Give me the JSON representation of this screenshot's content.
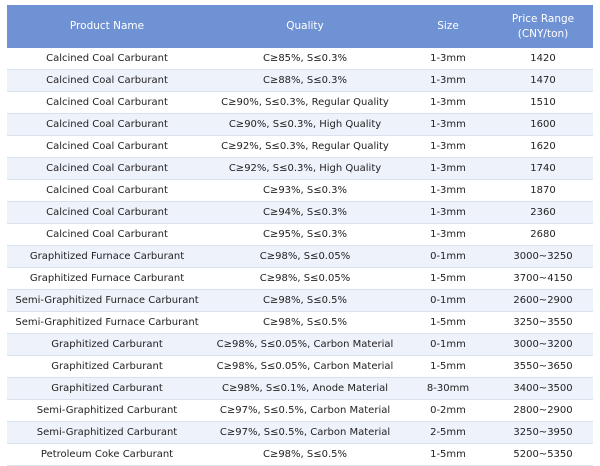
{
  "table": {
    "headers": {
      "product": "Product Name",
      "quality": "Quality",
      "size": "Size",
      "price_line1": "Price Range",
      "price_line2": "(CNY/ton)"
    },
    "rows": [
      {
        "product": "Calcined Coal Carburant",
        "quality": "C≥85%, S≤0.3%",
        "size": "1-3mm",
        "price": "1420"
      },
      {
        "product": "Calcined Coal Carburant",
        "quality": "C≥88%, S≤0.3%",
        "size": "1-3mm",
        "price": "1470"
      },
      {
        "product": "Calcined Coal Carburant",
        "quality": "C≥90%, S≤0.3%, Regular Quality",
        "size": "1-3mm",
        "price": "1510"
      },
      {
        "product": "Calcined Coal Carburant",
        "quality": "C≥90%, S≤0.3%, High Quality",
        "size": "1-3mm",
        "price": "1600"
      },
      {
        "product": "Calcined Coal Carburant",
        "quality": "C≥92%, S≤0.3%, Regular Quality",
        "size": "1-3mm",
        "price": "1620"
      },
      {
        "product": "Calcined Coal Carburant",
        "quality": "C≥92%, S≤0.3%, High Quality",
        "size": "1-3mm",
        "price": "1740"
      },
      {
        "product": "Calcined Coal Carburant",
        "quality": "C≥93%, S≤0.3%",
        "size": "1-3mm",
        "price": "1870"
      },
      {
        "product": "Calcined Coal Carburant",
        "quality": "C≥94%, S≤0.3%",
        "size": "1-3mm",
        "price": "2360"
      },
      {
        "product": "Calcined Coal Carburant",
        "quality": "C≥95%, S≤0.3%",
        "size": "1-3mm",
        "price": "2680"
      },
      {
        "product": "Graphitized Furnace Carburant",
        "quality": "C≥98%, S≤0.05%",
        "size": "0-1mm",
        "price": "3000~3250"
      },
      {
        "product": "Graphitized Furnace Carburant",
        "quality": "C≥98%, S≤0.05%",
        "size": "1-5mm",
        "price": "3700~4150"
      },
      {
        "product": "Semi-Graphitized Furnace Carburant",
        "quality": "C≥98%, S≤0.5%",
        "size": "0-1mm",
        "price": "2600~2900"
      },
      {
        "product": "Semi-Graphitized Furnace Carburant",
        "quality": "C≥98%, S≤0.5%",
        "size": "1-5mm",
        "price": "3250~3550"
      },
      {
        "product": "Graphitized Carburant",
        "quality": "C≥98%, S≤0.05%, Carbon Material",
        "size": "0-1mm",
        "price": "3000~3200"
      },
      {
        "product": "Graphitized Carburant",
        "quality": "C≥98%, S≤0.05%, Carbon Material",
        "size": "1-5mm",
        "price": "3550~3650"
      },
      {
        "product": "Graphitized Carburant",
        "quality": "C≥98%, S≤0.1%, Anode Material",
        "size": "8-30mm",
        "price": "3400~3500"
      },
      {
        "product": "Semi-Graphitized Carburant",
        "quality": "C≥97%, S≤0.5%, Carbon Material",
        "size": "0-2mm",
        "price": "2800~2900"
      },
      {
        "product": "Semi-Graphitized Carburant",
        "quality": "C≥97%, S≤0.5%, Carbon Material",
        "size": "2-5mm",
        "price": "3250~3950"
      },
      {
        "product": "Petroleum Coke Carburant",
        "quality": "C≥98%, S≤0.5%",
        "size": "1-5mm",
        "price": "5200~5350"
      }
    ]
  },
  "colors": {
    "header_bg": "#6f92d4",
    "stripe_bg": "#eef2fb"
  }
}
